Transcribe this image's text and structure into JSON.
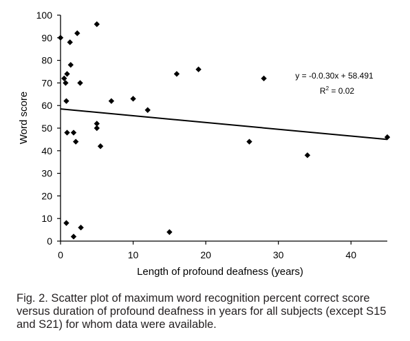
{
  "chart_data": {
    "type": "scatter",
    "xlabel": "Length of profound deafness (years)",
    "ylabel": "Word score",
    "xlim": [
      0,
      45
    ],
    "ylim": [
      0,
      100
    ],
    "x_ticks": [
      "0",
      "10",
      "20",
      "30",
      "40"
    ],
    "y_ticks": [
      "0",
      "10",
      "20",
      "30",
      "40",
      "50",
      "60",
      "70",
      "80",
      "90",
      "100"
    ],
    "grid": false,
    "legend": "none",
    "marker": "diamond",
    "marker_color": "#000000",
    "series": [
      {
        "points": [
          {
            "x": 0,
            "y": 90
          },
          {
            "x": 0.5,
            "y": 72
          },
          {
            "x": 0.7,
            "y": 70
          },
          {
            "x": 0.9,
            "y": 74
          },
          {
            "x": 0.8,
            "y": 62
          },
          {
            "x": 0.9,
            "y": 48
          },
          {
            "x": 0.8,
            "y": 8
          },
          {
            "x": 1.3,
            "y": 88
          },
          {
            "x": 1.4,
            "y": 78
          },
          {
            "x": 1.8,
            "y": 48
          },
          {
            "x": 2.1,
            "y": 44
          },
          {
            "x": 2.3,
            "y": 92
          },
          {
            "x": 2.7,
            "y": 70
          },
          {
            "x": 1.8,
            "y": 2
          },
          {
            "x": 2.8,
            "y": 6
          },
          {
            "x": 5,
            "y": 96
          },
          {
            "x": 5,
            "y": 52
          },
          {
            "x": 5,
            "y": 50
          },
          {
            "x": 5.5,
            "y": 42
          },
          {
            "x": 7,
            "y": 62
          },
          {
            "x": 10,
            "y": 63
          },
          {
            "x": 12,
            "y": 58
          },
          {
            "x": 15,
            "y": 4
          },
          {
            "x": 16,
            "y": 74
          },
          {
            "x": 19,
            "y": 76
          },
          {
            "x": 26,
            "y": 44
          },
          {
            "x": 28,
            "y": 72
          },
          {
            "x": 34,
            "y": 38
          },
          {
            "x": 45,
            "y": 46
          }
        ]
      }
    ],
    "trendline": {
      "slope": -0.3,
      "intercept": 58.491,
      "equation": "y = -0.0.30x + 58.491",
      "r2_prefix": "R",
      "r2_exponent": "2",
      "r2_suffix": " = 0.02"
    }
  },
  "caption": "Fig. 2. Scatter plot of maximum word recognition percent correct score versus duration of profound deafness in years for all subjects (except S15 and S21) for whom data were available."
}
